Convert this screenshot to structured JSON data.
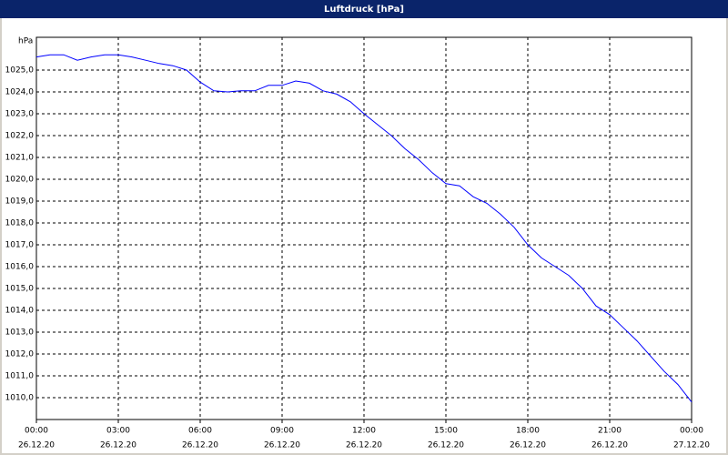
{
  "chart_data": {
    "type": "line",
    "title": "Luftdruck [hPa]",
    "y_label": "hPa",
    "x": [
      0,
      0.5,
      1,
      1.5,
      2,
      2.5,
      3,
      3.5,
      4,
      4.5,
      5,
      5.5,
      6,
      6.5,
      7,
      7.5,
      8,
      8.5,
      9,
      9.5,
      10,
      10.5,
      11,
      11.5,
      12,
      12.5,
      13,
      13.5,
      14,
      14.5,
      15,
      15.5,
      16,
      16.5,
      17,
      17.5,
      18,
      18.5,
      19,
      19.5,
      20,
      20.5,
      21,
      21.5,
      22,
      22.5,
      23,
      23.5,
      24
    ],
    "series": [
      {
        "color": "#0000ff",
        "values": [
          1025.6,
          1025.7,
          1025.7,
          1025.45,
          1025.6,
          1025.7,
          1025.7,
          1025.6,
          1025.45,
          1025.3,
          1025.2,
          1025.0,
          1024.45,
          1024.05,
          1024.0,
          1024.05,
          1024.05,
          1024.3,
          1024.3,
          1024.5,
          1024.4,
          1024.05,
          1023.9,
          1023.55,
          1023.0,
          1022.5,
          1022.0,
          1021.4,
          1020.9,
          1020.3,
          1019.8,
          1019.7,
          1019.2,
          1018.9,
          1018.4,
          1017.8,
          1017.0,
          1016.4,
          1016.0,
          1015.6,
          1015.0,
          1014.2,
          1013.8,
          1013.2,
          1012.6,
          1011.9,
          1011.2,
          1010.6,
          1009.8
        ]
      }
    ],
    "xlim": [
      0,
      24
    ],
    "xticks": [
      {
        "value": 0,
        "label": "00:00",
        "date": "26.12.20"
      },
      {
        "value": 3,
        "label": "03:00",
        "date": "26.12.20"
      },
      {
        "value": 6,
        "label": "06:00",
        "date": "26.12.20"
      },
      {
        "value": 9,
        "label": "09:00",
        "date": "26.12.20"
      },
      {
        "value": 12,
        "label": "12:00",
        "date": "26.12.20"
      },
      {
        "value": 15,
        "label": "15:00",
        "date": "26.12.20"
      },
      {
        "value": 18,
        "label": "18:00",
        "date": "26.12.20"
      },
      {
        "value": 21,
        "label": "21:00",
        "date": "26.12.20"
      },
      {
        "value": 24,
        "label": "00:00",
        "date": "27.12.20"
      }
    ],
    "ylim": [
      1009,
      1026.5
    ],
    "yticks": [
      {
        "value": 1010,
        "label": "1010,0"
      },
      {
        "value": 1011,
        "label": "1011,0"
      },
      {
        "value": 1012,
        "label": "1012,0"
      },
      {
        "value": 1013,
        "label": "1013,0"
      },
      {
        "value": 1014,
        "label": "1014,0"
      },
      {
        "value": 1015,
        "label": "1015,0"
      },
      {
        "value": 1016,
        "label": "1016,0"
      },
      {
        "value": 1017,
        "label": "1017,0"
      },
      {
        "value": 1018,
        "label": "1018,0"
      },
      {
        "value": 1019,
        "label": "1019,0"
      },
      {
        "value": 1020,
        "label": "1020,0"
      },
      {
        "value": 1021,
        "label": "1021,0"
      },
      {
        "value": 1022,
        "label": "1022,0"
      },
      {
        "value": 1023,
        "label": "1023,0"
      },
      {
        "value": 1024,
        "label": "1024,0"
      },
      {
        "value": 1025,
        "label": "1025,0"
      }
    ],
    "grid": true
  }
}
